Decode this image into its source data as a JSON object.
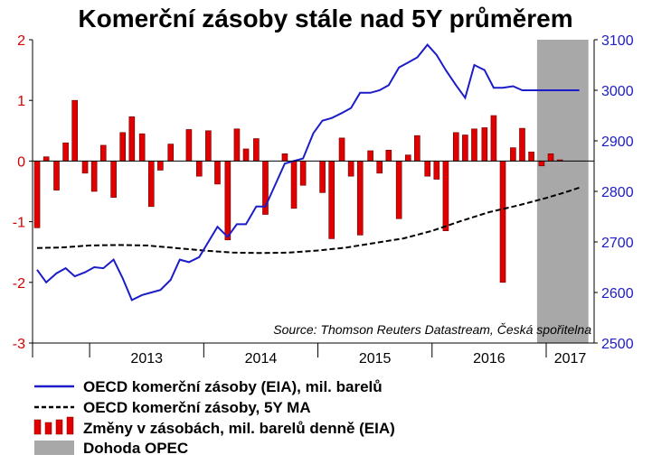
{
  "chart_data": {
    "type": "bar+line",
    "title": "Komerční zásoby stále nad 5Y průměrem",
    "source": "Source: Thomson Reuters Datastream, Česká spořitelna",
    "left_axis": {
      "ylim": [
        -3,
        2
      ],
      "ticks": [
        "2",
        "1",
        "0",
        "-1",
        "-2",
        "-3"
      ],
      "color": "#d40000"
    },
    "right_axis": {
      "ylim": [
        2500,
        3100
      ],
      "ticks": [
        "3100",
        "3000",
        "2900",
        "2800",
        "2700",
        "2600",
        "2500"
      ],
      "color": "#1c1cc8"
    },
    "x_axis": {
      "range": [
        2012.5,
        2017.42
      ],
      "year_labels": [
        "2013",
        "2014",
        "2015",
        "2016",
        "2017"
      ]
    },
    "opec_shading": {
      "start": 2016.92,
      "end": 2017.37,
      "color": "#a8a8a8"
    },
    "series": [
      {
        "name": "OECD komerční zásoby (EIA), mil. barelů",
        "type": "line",
        "axis": "right",
        "color": "#1c1cc8",
        "x": [
          2012.54,
          2012.62,
          2012.71,
          2012.79,
          2012.87,
          2012.96,
          2013.04,
          2013.12,
          2013.21,
          2013.29,
          2013.37,
          2013.46,
          2013.54,
          2013.62,
          2013.71,
          2013.79,
          2013.87,
          2013.96,
          2014.04,
          2014.12,
          2014.21,
          2014.29,
          2014.37,
          2014.46,
          2014.54,
          2014.62,
          2014.71,
          2014.79,
          2014.87,
          2014.96,
          2015.04,
          2015.12,
          2015.21,
          2015.29,
          2015.37,
          2015.46,
          2015.54,
          2015.62,
          2015.71,
          2015.79,
          2015.87,
          2015.96,
          2016.04,
          2016.12,
          2016.21,
          2016.29,
          2016.37,
          2016.46,
          2016.54,
          2016.62,
          2016.71,
          2016.79,
          2016.87,
          2016.96,
          2017.04,
          2017.12,
          2017.21,
          2017.29
        ],
        "values": [
          2645,
          2620,
          2638,
          2648,
          2632,
          2640,
          2650,
          2648,
          2665,
          2628,
          2585,
          2595,
          2600,
          2605,
          2625,
          2665,
          2660,
          2670,
          2700,
          2730,
          2710,
          2735,
          2735,
          2770,
          2770,
          2810,
          2855,
          2860,
          2865,
          2915,
          2940,
          2945,
          2955,
          2965,
          2995,
          2995,
          3000,
          3010,
          3045,
          3055,
          3065,
          3090,
          3070,
          3040,
          3010,
          2985,
          3050,
          3040,
          3005,
          3005,
          3008,
          3000,
          3000,
          3000,
          3000,
          3000,
          3000,
          3000
        ]
      },
      {
        "name": "OECD komerční zásoby, 5Y MA",
        "type": "line",
        "axis": "right",
        "color": "#000000",
        "dash": "dashed",
        "x": [
          2012.54,
          2012.75,
          2013.0,
          2013.25,
          2013.5,
          2013.75,
          2014.0,
          2014.25,
          2014.5,
          2014.75,
          2015.0,
          2015.25,
          2015.5,
          2015.75,
          2016.0,
          2016.25,
          2016.5,
          2016.75,
          2017.0,
          2017.15,
          2017.3
        ],
        "values": [
          2688,
          2689,
          2693,
          2694,
          2693,
          2688,
          2683,
          2679,
          2678,
          2679,
          2683,
          2689,
          2698,
          2707,
          2722,
          2741,
          2759,
          2772,
          2787,
          2797,
          2808
        ]
      },
      {
        "name": "Změny v zásobách, mil. barelů denně (EIA)",
        "type": "bar",
        "axis": "left",
        "color": "#e00000",
        "x": [
          2012.54,
          2012.62,
          2012.71,
          2012.79,
          2012.87,
          2012.96,
          2013.04,
          2013.12,
          2013.21,
          2013.29,
          2013.37,
          2013.46,
          2013.54,
          2013.62,
          2013.71,
          2013.79,
          2013.87,
          2013.96,
          2014.04,
          2014.12,
          2014.21,
          2014.29,
          2014.37,
          2014.46,
          2014.54,
          2014.62,
          2014.71,
          2014.79,
          2014.87,
          2014.96,
          2015.04,
          2015.12,
          2015.21,
          2015.29,
          2015.37,
          2015.46,
          2015.54,
          2015.62,
          2015.71,
          2015.79,
          2015.87,
          2015.96,
          2016.04,
          2016.12,
          2016.21,
          2016.29,
          2016.37,
          2016.46,
          2016.54,
          2016.62,
          2016.71,
          2016.79,
          2016.87,
          2016.96,
          2017.04,
          2017.12,
          2017.21,
          2017.29
        ],
        "values": [
          -1.1,
          0.07,
          -0.48,
          0.3,
          1.0,
          -0.2,
          -0.5,
          0.26,
          -0.6,
          0.47,
          0.73,
          0.45,
          -0.75,
          -0.15,
          0.28,
          0.0,
          0.52,
          -0.25,
          0.5,
          -0.38,
          -1.3,
          0.53,
          0.2,
          0.37,
          -0.88,
          0.0,
          0.12,
          -0.78,
          -0.4,
          0.0,
          -0.52,
          -1.28,
          0.38,
          -0.25,
          -1.22,
          0.17,
          -0.2,
          0.18,
          -0.95,
          0.1,
          0.42,
          -0.25,
          -0.3,
          -1.15,
          0.47,
          0.43,
          0.53,
          0.55,
          0.75,
          -2.0,
          0.22,
          0.54,
          0.15,
          -0.08,
          0.12,
          0.02,
          0.0,
          0.0
        ]
      },
      {
        "name": "Dohoda OPEC",
        "type": "area-shading",
        "color": "#a8a8a8"
      }
    ]
  },
  "legend": [
    {
      "key": "oecd",
      "label": "OECD komerční zásoby (EIA), mil. barelů"
    },
    {
      "key": "ma",
      "label": "OECD komerční zásoby, 5Y MA"
    },
    {
      "key": "changes",
      "label": "Změny v zásobách, mil. barelů denně (EIA)"
    },
    {
      "key": "opec",
      "label": "Dohoda OPEC"
    }
  ]
}
